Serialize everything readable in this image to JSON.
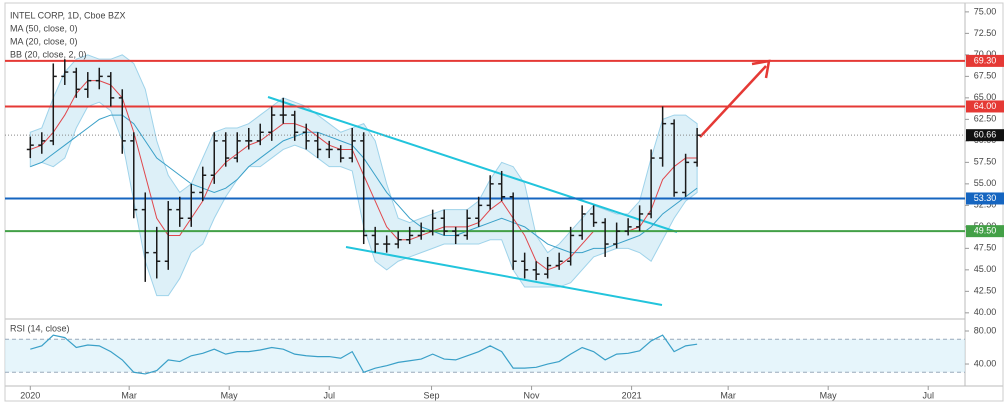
{
  "chart_data": {
    "type": "ohlc",
    "title": "INTEL CORP, 1D, Cboe BZX",
    "x": [
      0,
      1,
      2,
      3,
      4,
      5,
      6,
      7,
      8,
      9,
      10,
      11,
      12,
      13,
      14,
      15,
      16,
      17,
      18,
      19,
      20,
      21,
      22,
      23,
      24,
      25,
      26,
      27,
      28,
      29,
      30,
      31,
      32,
      33,
      34,
      35,
      36,
      37,
      38,
      39,
      40,
      41,
      42,
      43,
      44,
      45,
      46,
      47,
      48,
      49,
      50,
      51,
      52,
      53,
      54,
      55,
      56,
      57,
      58
    ],
    "open": [
      59,
      59.5,
      60,
      67.5,
      68,
      66,
      67,
      67.5,
      65,
      60,
      52,
      47,
      46,
      52,
      51,
      54,
      56,
      60,
      58,
      60,
      60,
      61,
      63,
      63,
      61,
      60,
      59,
      59,
      58,
      60,
      49,
      48,
      48,
      48.5,
      49,
      49.5,
      51,
      49.5,
      49,
      51,
      52.5,
      55,
      53.5,
      46,
      45,
      44.5,
      45.5,
      46,
      49,
      51.5,
      50.5,
      48,
      49.5,
      50,
      51.5,
      58,
      62,
      54,
      57.5
    ],
    "high": [
      60.5,
      61,
      69,
      69.5,
      68.5,
      68,
      68.5,
      68,
      66,
      61,
      54,
      50,
      53,
      53.5,
      55,
      57,
      61,
      61,
      61,
      61.5,
      62,
      64,
      65,
      63.5,
      62,
      61,
      60,
      59.5,
      61.5,
      61,
      50,
      49,
      49.5,
      50,
      50.5,
      52,
      52,
      50,
      52,
      53.5,
      56,
      56.5,
      54,
      47,
      46,
      46.5,
      47,
      50,
      52.5,
      52.5,
      51,
      50.5,
      51,
      52.5,
      59,
      64,
      62.5,
      58.5,
      61.5
    ],
    "low": [
      58,
      58.5,
      59.5,
      66.5,
      65,
      65,
      66,
      64,
      58.5,
      51,
      43.6,
      44,
      45,
      50,
      50,
      53,
      55,
      57,
      57.5,
      59,
      59.5,
      60,
      62,
      60,
      59,
      58,
      58,
      57.5,
      57.5,
      48,
      47,
      47,
      47.5,
      48,
      48.5,
      49,
      49,
      48,
      48.5,
      50,
      52,
      53,
      45,
      44,
      43.8,
      44,
      45,
      45.5,
      48.5,
      50,
      46.5,
      47.5,
      49,
      49.5,
      51,
      57,
      53.5,
      53.5,
      57
    ],
    "close": [
      59.5,
      60,
      67.5,
      68,
      66,
      67,
      67.5,
      65,
      60,
      52,
      47,
      46,
      52,
      51,
      54,
      56,
      60,
      58,
      60,
      60,
      61,
      63,
      63,
      61,
      60,
      59,
      59,
      58,
      60,
      49,
      48,
      48,
      48.5,
      49,
      49.5,
      51,
      49.5,
      49,
      51,
      52.5,
      55,
      53.5,
      46,
      45,
      44.5,
      45.5,
      46,
      49,
      51.5,
      50.5,
      48,
      49.5,
      50,
      51.5,
      58,
      62,
      54,
      57.5,
      60.66
    ],
    "color": "#1a1a1a",
    "series": [
      {
        "name": "MA (50, close, 0)",
        "color": "#3aa0c8",
        "values": [
          57,
          57.5,
          58.5,
          59.5,
          60.5,
          61.5,
          62.5,
          63,
          63,
          62,
          60,
          58,
          57,
          56,
          55,
          54.5,
          54,
          54.5,
          55.5,
          57,
          58,
          59,
          60,
          60.5,
          61,
          61,
          60.5,
          60,
          59.5,
          58,
          56,
          54,
          52.5,
          51,
          50,
          49.5,
          49,
          49,
          49.5,
          50,
          50.5,
          51,
          50.5,
          50,
          49,
          48,
          47.5,
          47,
          47,
          47.5,
          47.5,
          48,
          48.5,
          49,
          50,
          51.5,
          52.5,
          53.5,
          54.5
        ]
      },
      {
        "name": "MA (20, close, 0)",
        "color": "#e0474c",
        "values": [
          59,
          59.5,
          61,
          63,
          65.5,
          67,
          67,
          66.5,
          65,
          61,
          56,
          51,
          49,
          49,
          51,
          53,
          56,
          57.5,
          58.5,
          59.5,
          60,
          61,
          62,
          62,
          61.5,
          60.5,
          59.5,
          59,
          59,
          56,
          53,
          50,
          48.5,
          48.5,
          49,
          49.5,
          50,
          50,
          50,
          50.5,
          52,
          53,
          51,
          49,
          46,
          45,
          45.5,
          46.5,
          48,
          49.5,
          49.5,
          49.5,
          49.5,
          50,
          52,
          55.5,
          57,
          58,
          58
        ]
      },
      {
        "name": "BB (20, close, 2, 0)",
        "color": "#9fd3ea",
        "upper": [
          61,
          61.5,
          65,
          68,
          69.5,
          70,
          69.5,
          69.5,
          70,
          69,
          66,
          60,
          56,
          54,
          55,
          58,
          61,
          61.5,
          61.5,
          62,
          63,
          64,
          65,
          64.5,
          64,
          63,
          62,
          61,
          61.5,
          62,
          60,
          55,
          51,
          50.5,
          51,
          51.5,
          52,
          52,
          52,
          53,
          55.5,
          57.5,
          57,
          55,
          49,
          47,
          48,
          49.5,
          51,
          52.5,
          52,
          51.5,
          51.5,
          53,
          58,
          62.5,
          63,
          63,
          62
        ],
        "lower": [
          57,
          57.5,
          57,
          58,
          61.5,
          64,
          64.5,
          63.5,
          60,
          53,
          46,
          42,
          42,
          44,
          47,
          48,
          51,
          53.5,
          55.5,
          57,
          57,
          58,
          59,
          59.5,
          59,
          58,
          57,
          57,
          56.5,
          50,
          46,
          45,
          46,
          46.5,
          47,
          47.5,
          48,
          48,
          48,
          48,
          48.5,
          48.5,
          45,
          43,
          43,
          43,
          43,
          43.5,
          45,
          46.5,
          47,
          47.5,
          47.5,
          47,
          46,
          48.5,
          51,
          53,
          54
        ]
      }
    ],
    "xlim": [
      -2.2,
      81.3
    ],
    "xticks": [
      {
        "value": 0,
        "label": "2020"
      },
      {
        "value": 8.6,
        "label": "Mar"
      },
      {
        "value": 17.3,
        "label": "May"
      },
      {
        "value": 26,
        "label": "Jul"
      },
      {
        "value": 34.9,
        "label": "Sep"
      },
      {
        "value": 43.6,
        "label": "Nov"
      },
      {
        "value": 52.3,
        "label": "2021"
      },
      {
        "value": 60.7,
        "label": "Mar"
      },
      {
        "value": 69.4,
        "label": "May"
      },
      {
        "value": 78.1,
        "label": "Jul"
      }
    ],
    "ylim": [
      39.4,
      75.8
    ],
    "yticks": [
      {
        "value": 75,
        "label": "75.00"
      },
      {
        "value": 72.5,
        "label": "72.50"
      },
      {
        "value": 70,
        "label": "70.00"
      },
      {
        "value": 67.5,
        "label": "67.50"
      },
      {
        "value": 65,
        "label": "65.00"
      },
      {
        "value": 62.5,
        "label": "62.50"
      },
      {
        "value": 60,
        "label": "60.00"
      },
      {
        "value": 57.5,
        "label": "57.50"
      },
      {
        "value": 55,
        "label": "55.00"
      },
      {
        "value": 52.5,
        "label": "52.50"
      },
      {
        "value": 50,
        "label": "50.00"
      },
      {
        "value": 47.5,
        "label": "47.50"
      },
      {
        "value": 45,
        "label": "45.00"
      },
      {
        "value": 42.5,
        "label": "42.50"
      },
      {
        "value": 40,
        "label": "40.00"
      }
    ],
    "levels": [
      {
        "value": 69.3,
        "label": "69.30",
        "color": "#e53935"
      },
      {
        "value": 64,
        "label": "64.00",
        "color": "#e53935"
      },
      {
        "value": 53.3,
        "label": "53.30",
        "color": "#1565c0"
      },
      {
        "value": 49.5,
        "label": "49.50",
        "color": "#43a047"
      }
    ],
    "last": {
      "value": 60.66,
      "label": "60.66"
    },
    "rsi": {
      "title": "RSI (14, close)",
      "color": "#3aa0c8",
      "values": [
        58,
        62,
        75,
        72,
        60,
        63,
        62,
        55,
        45,
        30,
        28,
        32,
        45,
        43,
        50,
        53,
        58,
        52,
        55,
        55,
        57,
        60,
        58,
        52,
        50,
        49,
        49,
        47,
        55,
        30,
        35,
        38,
        42,
        44,
        46,
        52,
        46,
        45,
        50,
        55,
        62,
        55,
        35,
        35,
        36,
        40,
        43,
        52,
        60,
        55,
        45,
        52,
        53,
        56,
        68,
        75,
        55,
        62,
        64
      ],
      "ylim": [
        15.8,
        90.9
      ],
      "yticks": [
        {
          "value": 80,
          "label": "80.00"
        },
        {
          "value": 40,
          "label": "40.00"
        }
      ],
      "band": [
        30,
        70
      ]
    }
  }
}
